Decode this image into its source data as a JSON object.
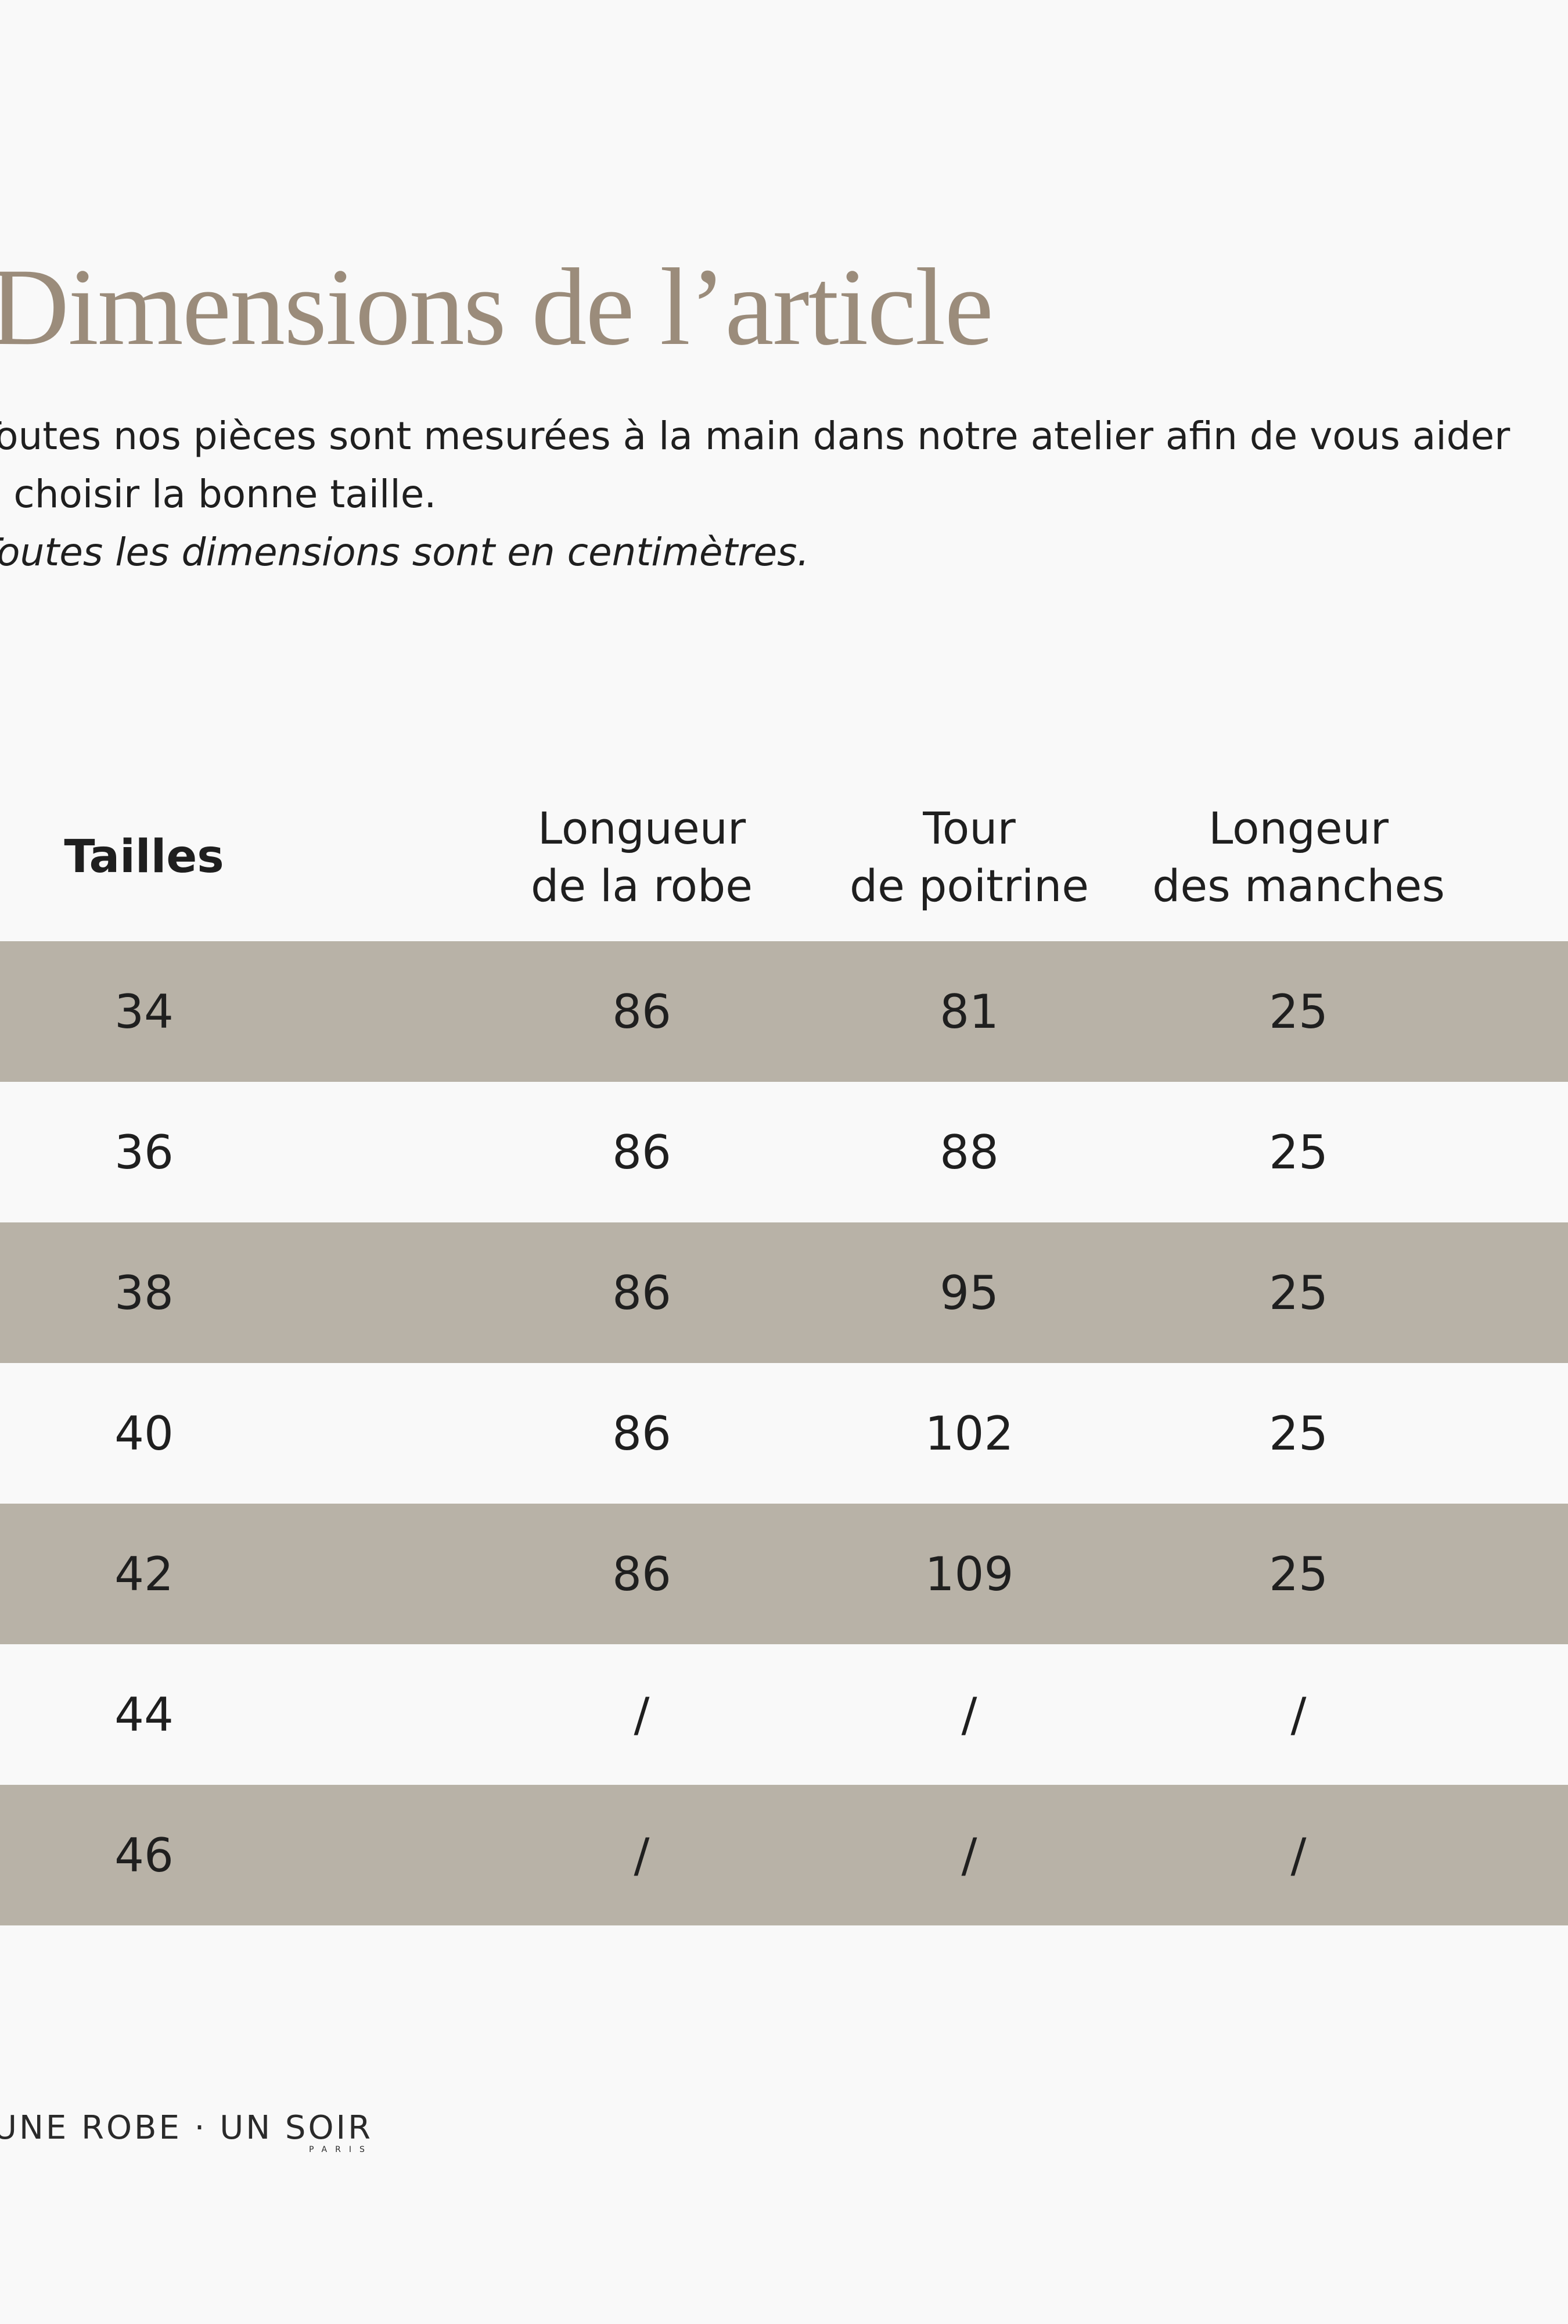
{
  "header": {
    "title": "Dimensions de l’article",
    "description": [
      "Toutes nos pièces sont mesurées à la main dans notre atelier afin de vous aider",
      "à choisir la bonne taille."
    ],
    "note": "Toutes les dimensions sont en centimètres."
  },
  "table": {
    "columns": [
      [
        "Tailles"
      ],
      [
        "Longueur",
        "de la robe"
      ],
      [
        "Tour",
        "de poitrine"
      ],
      [
        "Longeur",
        "des manches"
      ]
    ],
    "rows": [
      [
        "34",
        "86",
        "81",
        "25"
      ],
      [
        "36",
        "86",
        "88",
        "25"
      ],
      [
        "38",
        "86",
        "95",
        "25"
      ],
      [
        "40",
        "86",
        "102",
        "25"
      ],
      [
        "42",
        "86",
        "109",
        "25"
      ],
      [
        "44",
        "/",
        "/",
        "/"
      ],
      [
        "46",
        "/",
        "/",
        "/"
      ]
    ]
  },
  "footer": {
    "logo": "UNE ROBE · UN SOIR",
    "logo_sub": "PARIS"
  }
}
